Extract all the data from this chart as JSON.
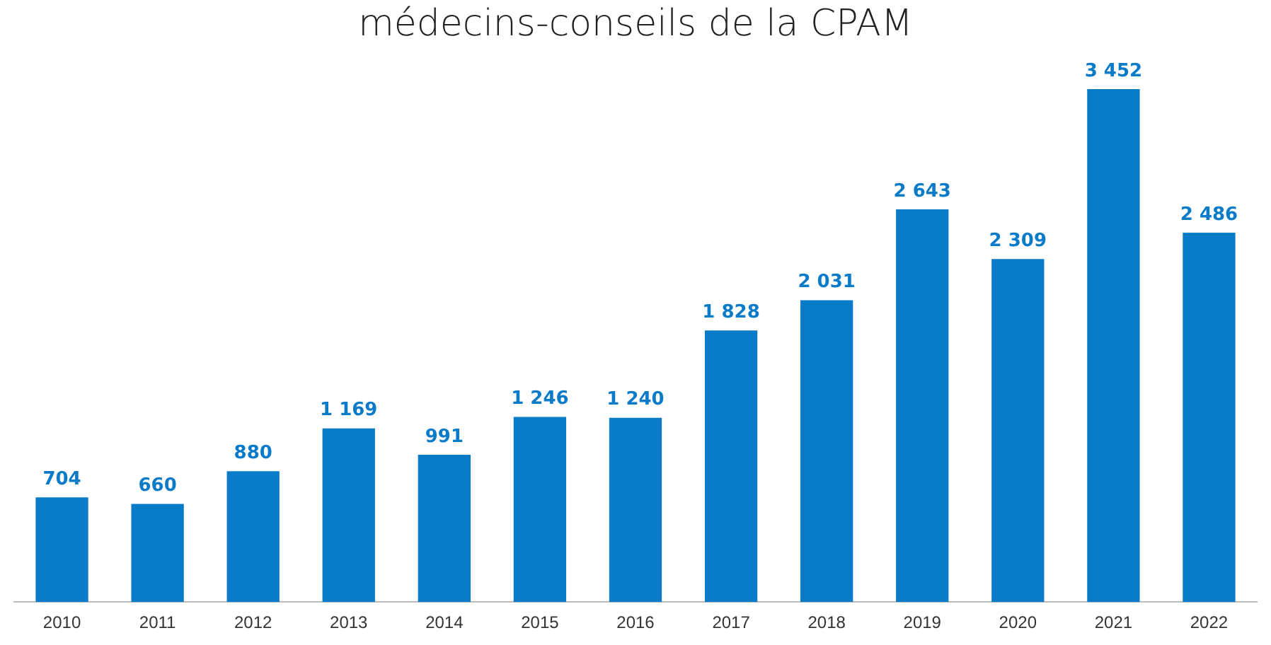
{
  "chart_data": {
    "type": "bar",
    "title": "médecins-conseils de la CPAM",
    "categories": [
      "2010",
      "2011",
      "2012",
      "2013",
      "2014",
      "2015",
      "2016",
      "2017",
      "2018",
      "2019",
      "2020",
      "2021",
      "2022"
    ],
    "values": [
      704,
      660,
      880,
      1169,
      991,
      1246,
      1240,
      1828,
      2031,
      2643,
      2309,
      3452,
      2486
    ],
    "value_labels": [
      "704",
      "660",
      "880",
      "1 169",
      "991",
      "1 246",
      "1 240",
      "1 828",
      "2 031",
      "2 643",
      "2 309",
      "3 452",
      "2 486"
    ],
    "color": "#0a7bc8",
    "grid": false,
    "legend": false
  }
}
